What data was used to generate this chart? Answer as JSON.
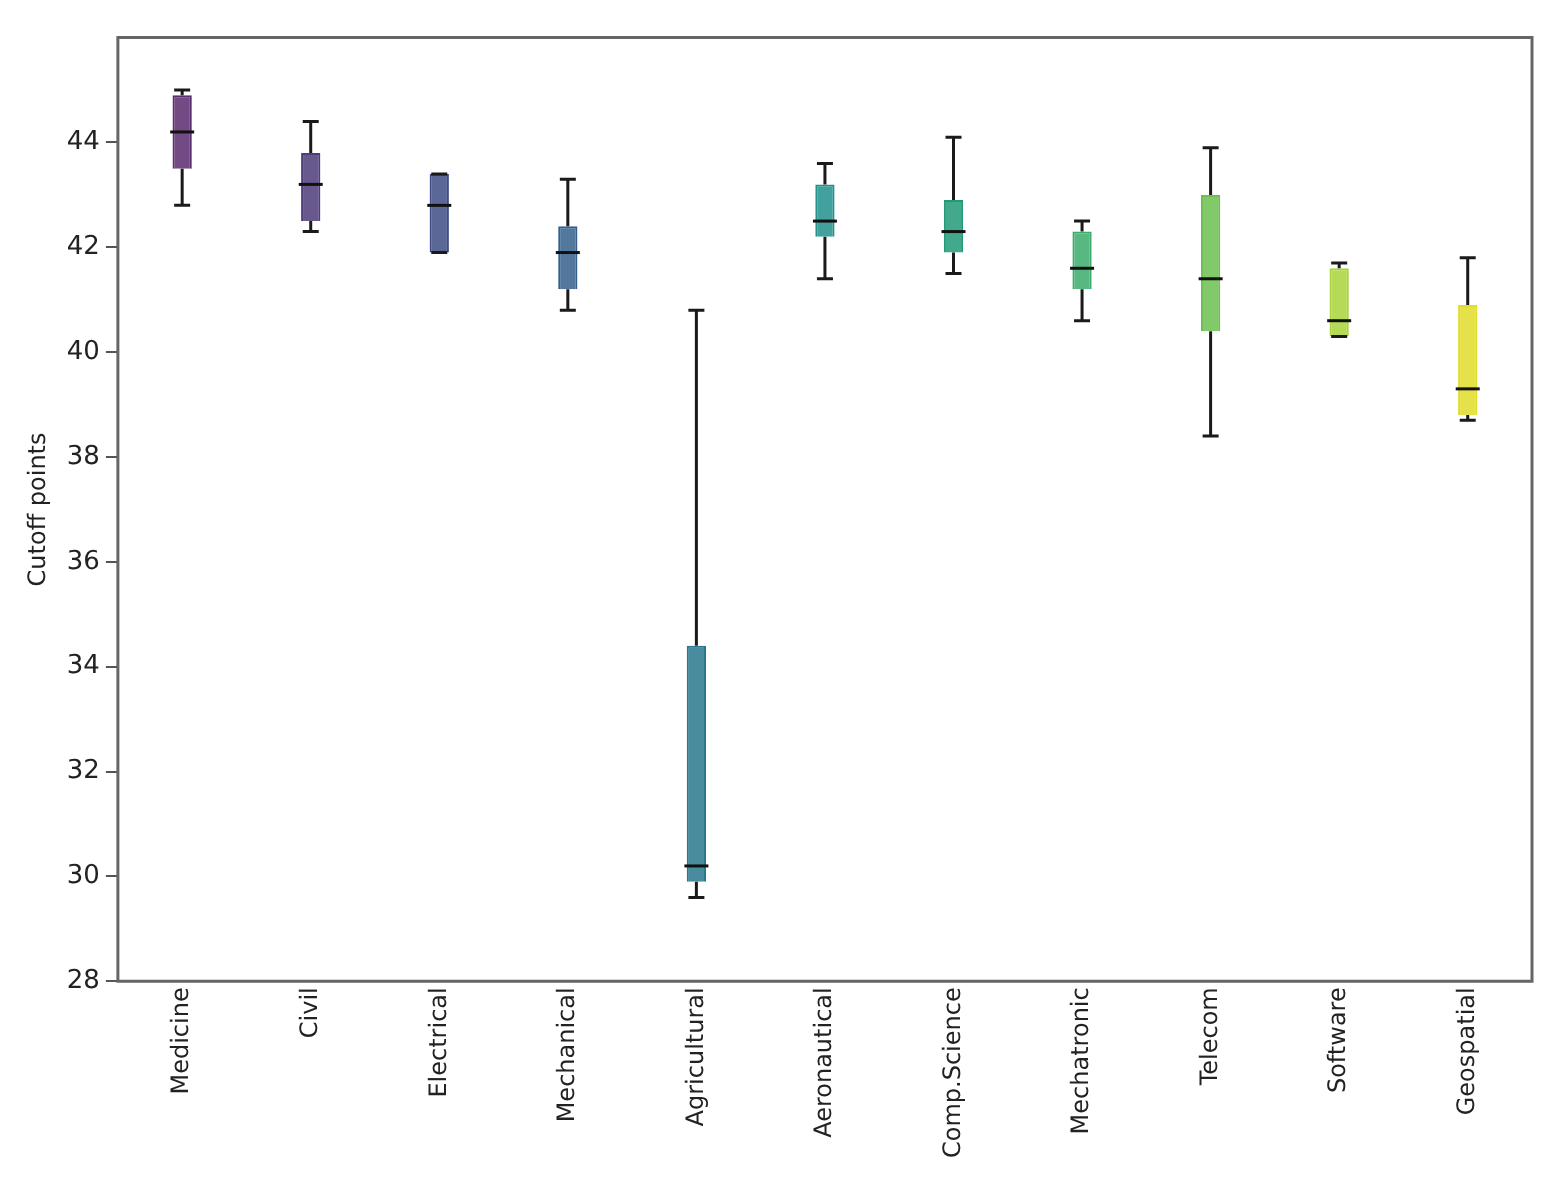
{
  "chart_data": {
    "type": "box",
    "ylabel": "Cutoff points",
    "categories": [
      "Medicine",
      "Civil",
      "Electrical",
      "Mechanical",
      "Agricultural",
      "Aeronautical",
      "Comp.Science",
      "Mechatronic",
      "Telecom",
      "Software",
      "Geospatial"
    ],
    "boxes": [
      {
        "low": 42.8,
        "q1": 43.5,
        "median": 44.2,
        "q3": 44.9,
        "high": 45.0
      },
      {
        "low": 42.3,
        "q1": 42.5,
        "median": 43.2,
        "q3": 43.8,
        "high": 44.4
      },
      {
        "low": 41.9,
        "q1": 41.9,
        "median": 42.8,
        "q3": 43.4,
        "high": 43.4
      },
      {
        "low": 40.8,
        "q1": 41.2,
        "median": 41.9,
        "q3": 42.4,
        "high": 43.3
      },
      {
        "low": 29.6,
        "q1": 29.9,
        "median": 30.2,
        "q3": 34.4,
        "high": 40.8
      },
      {
        "low": 41.4,
        "q1": 42.2,
        "median": 42.5,
        "q3": 43.2,
        "high": 43.6
      },
      {
        "low": 41.5,
        "q1": 41.9,
        "median": 42.3,
        "q3": 42.9,
        "high": 44.1
      },
      {
        "low": 40.6,
        "q1": 41.2,
        "median": 41.6,
        "q3": 42.3,
        "high": 42.5
      },
      {
        "low": 38.4,
        "q1": 40.4,
        "median": 41.4,
        "q3": 43.0,
        "high": 43.9
      },
      {
        "low": 40.3,
        "q1": 40.3,
        "median": 40.6,
        "q3": 41.6,
        "high": 41.7
      },
      {
        "low": 38.7,
        "q1": 38.8,
        "median": 39.3,
        "q3": 40.9,
        "high": 41.8
      }
    ],
    "colors": [
      "#5b2c6f",
      "#4e3b7a",
      "#3e4d85",
      "#35608d",
      "#2a788e",
      "#21918c",
      "#229a78",
      "#3bac6c",
      "#6cc050",
      "#a8d43a",
      "#e0dc28"
    ],
    "ylim": [
      28,
      46
    ],
    "yticks": [
      28,
      30,
      32,
      34,
      36,
      38,
      40,
      42,
      44
    ],
    "grid": false,
    "legend": false
  }
}
